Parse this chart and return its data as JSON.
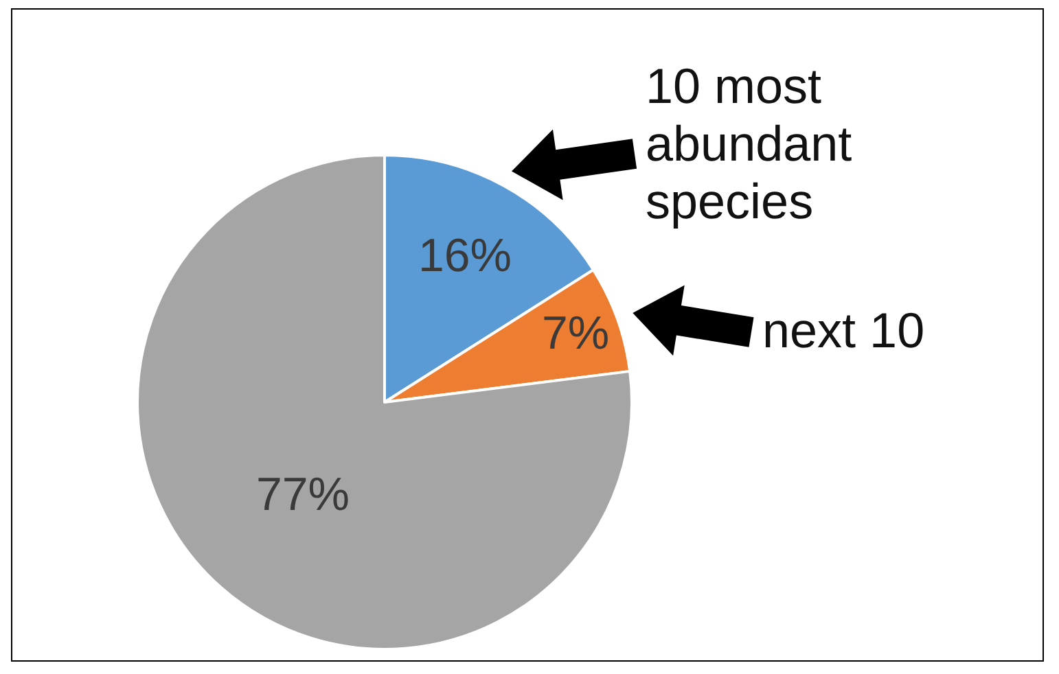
{
  "chart_data": {
    "type": "pie",
    "categories": [
      "10 most abundant species",
      "next 10",
      null
    ],
    "values": [
      16,
      7,
      77
    ],
    "colors": [
      "#5b9bd5",
      "#ed7d31",
      "#a5a5a5"
    ],
    "value_labels": [
      "16%",
      "7%",
      "77%"
    ],
    "legend": false
  }
}
